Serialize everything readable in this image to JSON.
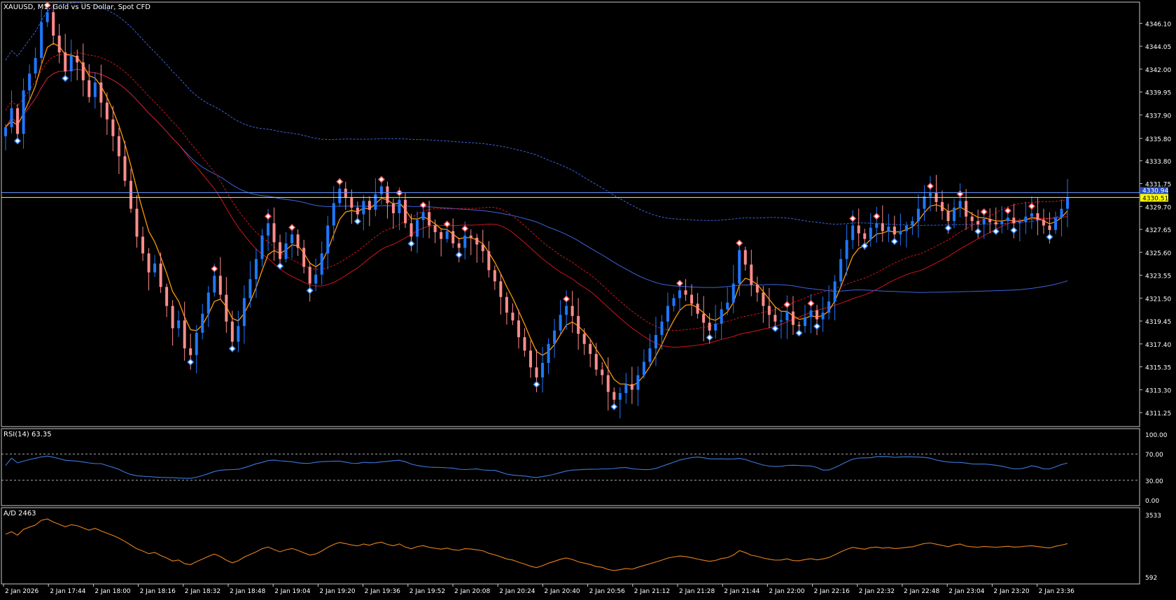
{
  "window": {
    "symbol_title": "XAUUSD, M1:  Gold vs US Dollar, Spot CFD"
  },
  "colors": {
    "background": "#000000",
    "frame": "#c8c8c8",
    "axis_text": "#ffffff",
    "bull": "#1e78ff",
    "bear": "#ff8c8c",
    "ma_fast": "#ff9900",
    "ma_mid": "#d2141e",
    "ma_slow": "#3c64dc",
    "rsi_line": "#3c78dc",
    "ad_line": "#e6821e",
    "bid_line": "#ffff00",
    "ask_line": "#6495ff"
  },
  "main_chart": {
    "price_ticks": [
      "4346.10",
      "4344.05",
      "4342.00",
      "4339.95",
      "4337.90",
      "4335.80",
      "4333.80",
      "4331.75",
      "4329.70",
      "4327.65",
      "4325.60",
      "4323.55",
      "4321.50",
      "4319.45",
      "4317.40",
      "4315.35",
      "4313.30",
      "4311.25"
    ],
    "y_range": [
      4310.0,
      4348.0
    ],
    "current_bid_label": "4330.51",
    "current_ask_label": "4330.94",
    "bid_price": 4330.51,
    "ask_price": 4330.94
  },
  "rsi_panel": {
    "title": "RSI(14) 63.35",
    "levels": [
      "100.00",
      "70.00",
      "30.00",
      "0.00"
    ],
    "range": [
      0,
      100
    ],
    "overbought": 70,
    "oversold": 30
  },
  "ad_panel": {
    "title": "A/D 2463",
    "levels": [
      "3533",
      "592"
    ],
    "range": [
      592,
      3533
    ]
  },
  "time_axis": {
    "labels": [
      "2 Jan 2026",
      "2 Jan 17:44",
      "2 Jan 18:00",
      "2 Jan 18:16",
      "2 Jan 18:32",
      "2 Jan 18:48",
      "2 Jan 19:04",
      "2 Jan 19:20",
      "2 Jan 19:36",
      "2 Jan 19:52",
      "2 Jan 20:08",
      "2 Jan 20:24",
      "2 Jan 20:40",
      "2 Jan 20:56",
      "2 Jan 21:12",
      "2 Jan 21:28",
      "2 Jan 21:44",
      "2 Jan 22:00",
      "2 Jan 22:16",
      "2 Jan 22:32",
      "2 Jan 22:48",
      "2 Jan 23:04",
      "2 Jan 23:20",
      "2 Jan 23:36"
    ]
  },
  "chart_data": {
    "type": "line",
    "title": "XAUUSD, M1:  Gold vs US Dollar, Spot CFD",
    "xlabel": "",
    "ylabel": "",
    "ylim": [
      4310.0,
      4348.0
    ],
    "series": [
      {
        "values": [
          4336.8,
          4338.5,
          4336.2,
          4340.1,
          4341.6,
          4343.0,
          4346.2,
          4347.1,
          4345.0,
          4343.5,
          4341.8,
          4343.2,
          4342.6,
          4341.0,
          4339.5,
          4340.8,
          4339.0,
          4337.5,
          4336.0,
          4334.2,
          4332.0,
          4329.5,
          4327.0,
          4325.5,
          4323.8,
          4324.6,
          4322.5,
          4320.8,
          4318.8,
          4319.5,
          4317.0,
          4316.4,
          4318.4,
          4320.1,
          4322.0,
          4323.5,
          4321.8,
          4319.4,
          4317.6,
          4319.0,
          4321.5,
          4323.2,
          4325.0,
          4327.1,
          4328.2,
          4326.5,
          4325.0,
          4326.4,
          4327.2,
          4326.0,
          4324.3,
          4322.8,
          4323.6,
          4325.5,
          4328.0,
          4330.0,
          4331.3,
          4330.5,
          4329.6,
          4329.0,
          4330.2,
          4329.4,
          4330.8,
          4331.5,
          4330.0,
          4329.1,
          4330.3,
          4328.2,
          4327.0,
          4328.5,
          4329.2,
          4328.0,
          4327.4,
          4326.8,
          4327.5,
          4326.4,
          4326.0,
          4327.1,
          4326.9,
          4326.3,
          4325.7,
          4324.0,
          4323.0,
          4321.6,
          4320.2,
          4319.5,
          4318.0,
          4316.8,
          4315.3,
          4314.4,
          4315.7,
          4317.4,
          4318.6,
          4320.0,
          4320.8,
          4319.9,
          4318.3,
          4317.4,
          4316.5,
          4315.1,
          4314.6,
          4313.1,
          4312.4,
          4313.0,
          4313.8,
          4313.3,
          4314.6,
          4315.8,
          4317.0,
          4318.2,
          4319.4,
          4320.8,
          4321.5,
          4322.2,
          4321.8,
          4321.0,
          4320.1,
          4319.3,
          4318.6,
          4319.2,
          4320.5,
          4321.1,
          4322.8,
          4325.8,
          4324.5,
          4322.7,
          4322.0,
          4320.8,
          4320.0,
          4319.4,
          4319.5,
          4320.3,
          4319.1,
          4319.0,
          4319.8,
          4320.4,
          4319.6,
          4320.2,
          4321.2,
          4323.0,
          4325.0,
          4326.7,
          4328.0,
          4327.3,
          4326.8,
          4327.8,
          4328.2,
          4327.5,
          4327.9,
          4327.2,
          4327.5,
          4328.0,
          4328.4,
          4329.5,
          4330.6,
          4330.9,
          4330.1,
          4329.3,
          4328.4,
          4329.6,
          4330.2,
          4328.8,
          4328.4,
          4328.1,
          4328.6,
          4328.3,
          4328.1,
          4328.4,
          4328.7,
          4328.2,
          4328.3,
          4328.8,
          4329.1,
          4328.5,
          4328.0,
          4327.6,
          4328.7,
          4329.5,
          4330.5
        ]
      }
    ]
  }
}
